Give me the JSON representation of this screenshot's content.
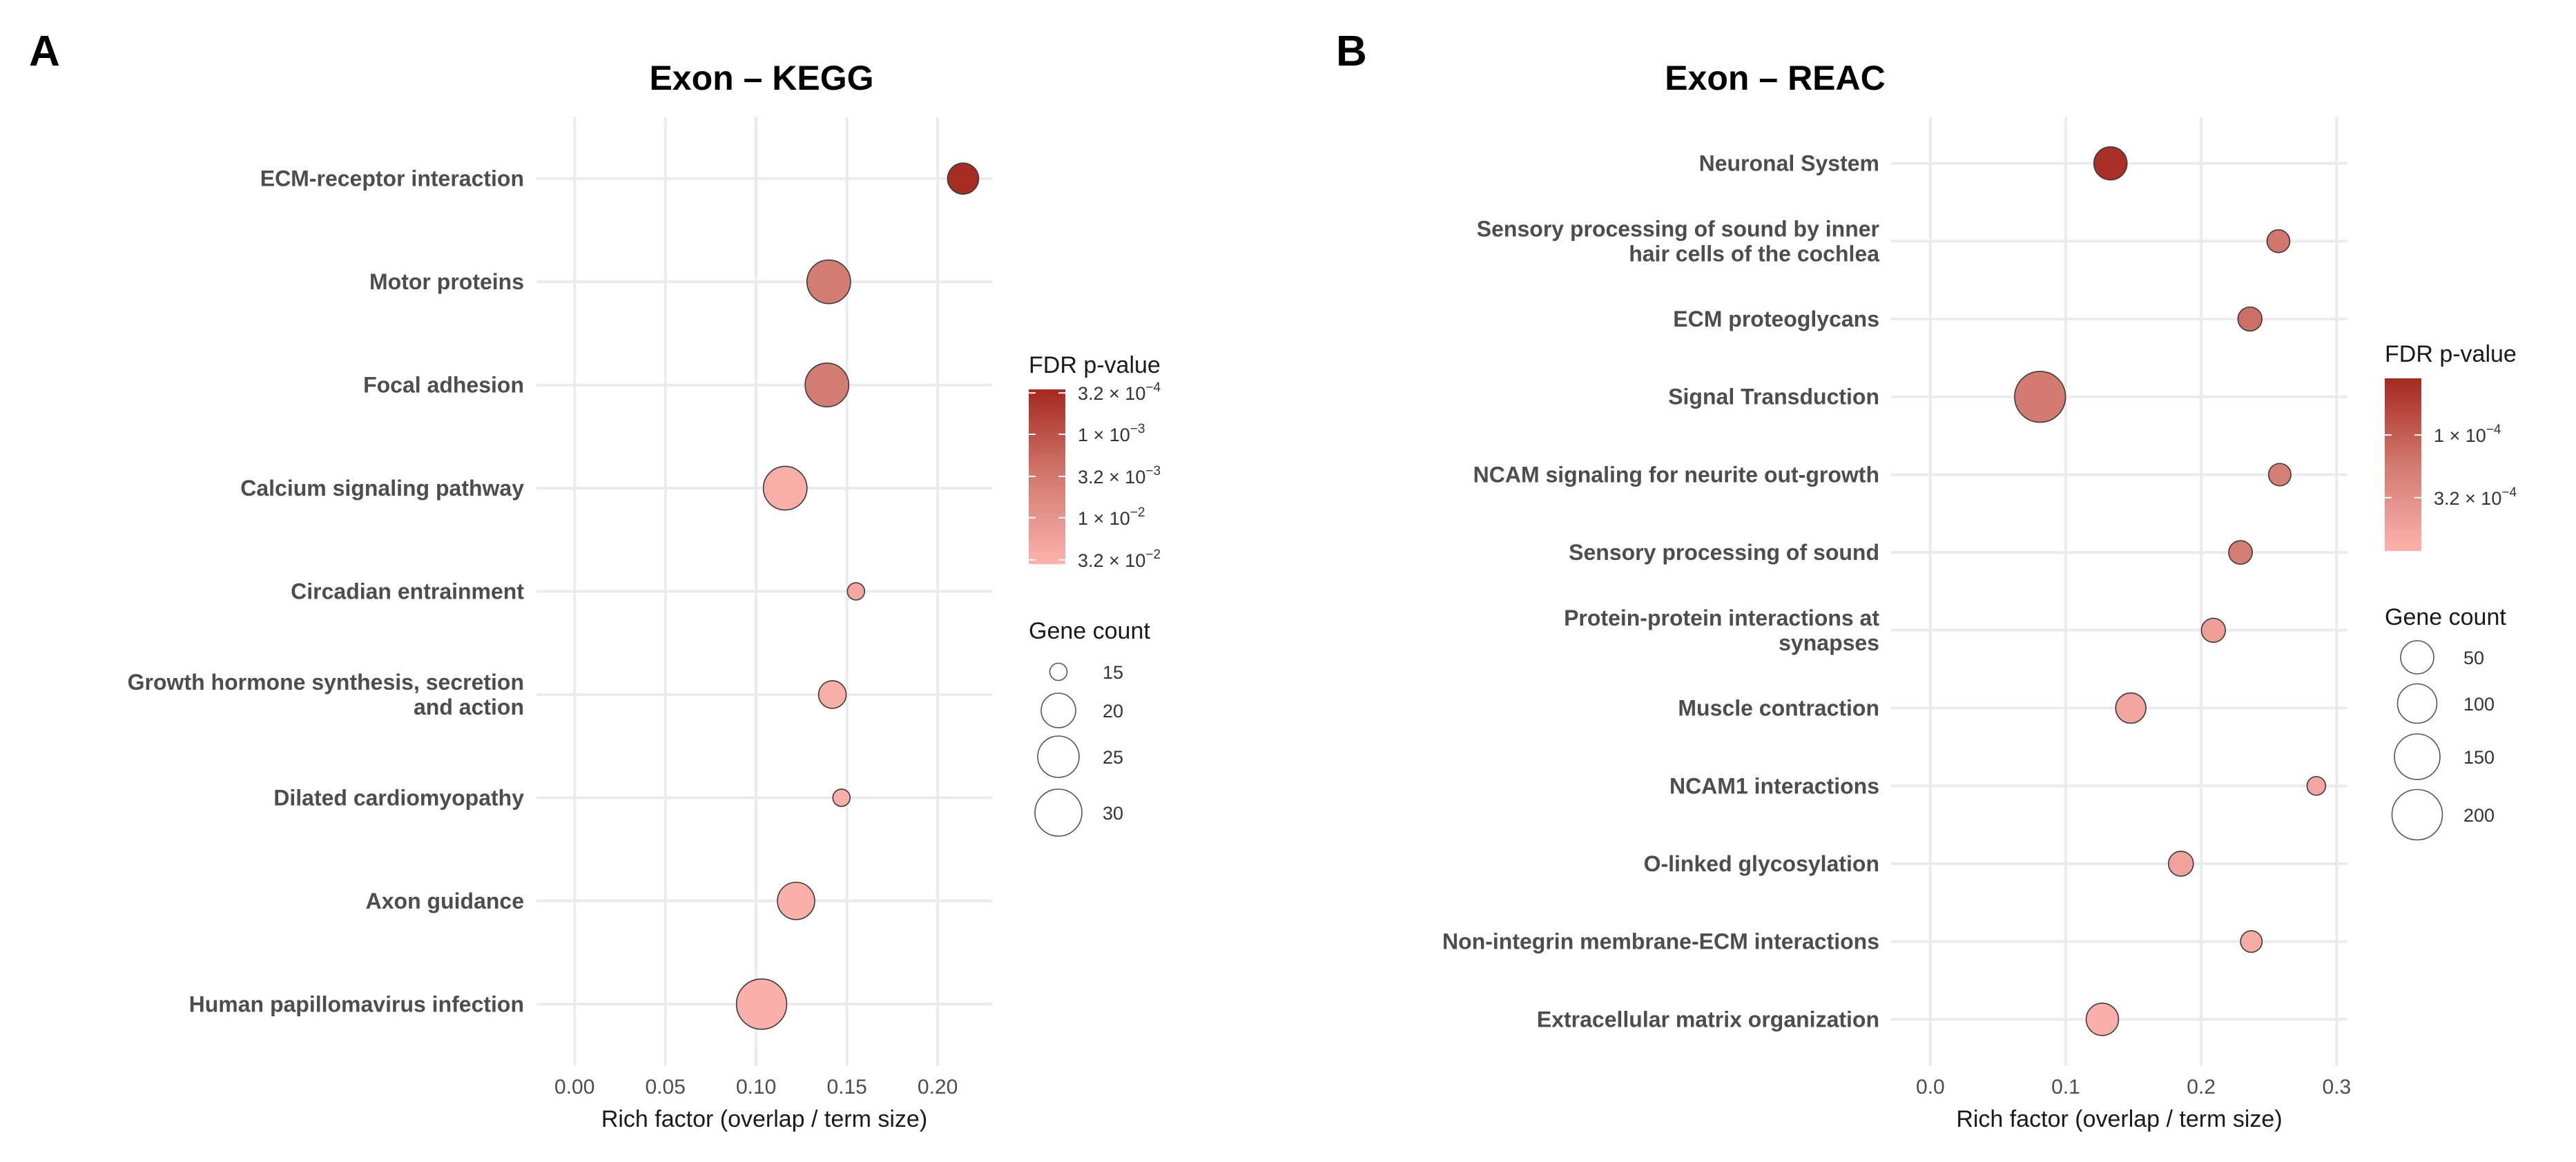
{
  "chart_data": [
    {
      "type": "scatter",
      "panel_label": "A",
      "title": "Exon – KEGG",
      "xlabel": "Rich factor (overlap / term size)",
      "ylabel": "",
      "xlim": [
        -0.021,
        0.23
      ],
      "x_ticks": [
        0,
        0.05,
        0.1,
        0.15,
        0.2
      ],
      "x_tick_labels": [
        "0.00",
        "0.05",
        "0.10",
        "0.15",
        "0.20"
      ],
      "grid": true,
      "terms": [
        {
          "lines": [
            "ECM-receptor interaction"
          ],
          "rich_factor": 0.214,
          "gene_count": 19,
          "fdr": 0.00032
        },
        {
          "lines": [
            "Motor proteins"
          ],
          "rich_factor": 0.14,
          "gene_count": 27,
          "fdr": 0.0035
        },
        {
          "lines": [
            "Focal adhesion"
          ],
          "rich_factor": 0.139,
          "gene_count": 27,
          "fdr": 0.0035
        },
        {
          "lines": [
            "Calcium signaling pathway"
          ],
          "rich_factor": 0.116,
          "gene_count": 27,
          "fdr": 0.03
        },
        {
          "lines": [
            "Circadian entrainment"
          ],
          "rich_factor": 0.155,
          "gene_count": 15,
          "fdr": 0.022
        },
        {
          "lines": [
            "Growth hormone synthesis, secretion",
            "and action"
          ],
          "rich_factor": 0.142,
          "gene_count": 18,
          "fdr": 0.03
        },
        {
          "lines": [
            "Dilated cardiomyopathy"
          ],
          "rich_factor": 0.147,
          "gene_count": 15,
          "fdr": 0.03
        },
        {
          "lines": [
            "Axon guidance"
          ],
          "rich_factor": 0.122,
          "gene_count": 22,
          "fdr": 0.032
        },
        {
          "lines": [
            "Human papillomavirus infection"
          ],
          "rich_factor": 0.103,
          "gene_count": 34,
          "fdr": 0.032
        }
      ],
      "color_legend": {
        "title": "FDR p-value",
        "range": [
          0.00029,
          0.036
        ],
        "low_color": "#a5291f",
        "mid_color": "#d27a70",
        "high_color": "#fdb2ad",
        "ticks": [
          {
            "value": 0.00032,
            "mantissa": "3.2 × 10",
            "exp": "−4"
          },
          {
            "value": 0.001,
            "mantissa": "1 × 10",
            "exp": "−3"
          },
          {
            "value": 0.0032,
            "mantissa": "3.2 × 10",
            "exp": "−3"
          },
          {
            "value": 0.01,
            "mantissa": "1 × 10",
            "exp": "−2"
          },
          {
            "value": 0.032,
            "mantissa": "3.2 × 10",
            "exp": "−2"
          }
        ]
      },
      "size_legend": {
        "title": "Gene count",
        "entries": [
          {
            "label": "15",
            "value": 15
          },
          {
            "label": "20",
            "value": 20
          },
          {
            "label": "25",
            "value": 25
          },
          {
            "label": "30",
            "value": 30
          }
        ]
      }
    },
    {
      "type": "scatter",
      "panel_label": "B",
      "title": "Exon – REAC",
      "xlabel": "Rich factor (overlap / term size)",
      "ylabel": "",
      "xlim": [
        -0.029,
        0.308
      ],
      "x_ticks": [
        0,
        0.1,
        0.2,
        0.3
      ],
      "x_tick_labels": [
        "0.0",
        "0.1",
        "0.2",
        "0.3"
      ],
      "grid": true,
      "terms": [
        {
          "lines": [
            "Neuronal System"
          ],
          "rich_factor": 0.133,
          "gene_count": 50,
          "fdr": 4e-05
        },
        {
          "lines": [
            "Sensory processing of sound by inner",
            "hair cells of the cochlea"
          ],
          "rich_factor": 0.257,
          "gene_count": 25,
          "fdr": 0.00016
        },
        {
          "lines": [
            "ECM proteoglycans"
          ],
          "rich_factor": 0.236,
          "gene_count": 28,
          "fdr": 0.00014
        },
        {
          "lines": [
            "Signal Transduction"
          ],
          "rich_factor": 0.081,
          "gene_count": 205,
          "fdr": 0.00018
        },
        {
          "lines": [
            "NCAM signaling for neurite out-growth"
          ],
          "rich_factor": 0.258,
          "gene_count": 24,
          "fdr": 0.0002
        },
        {
          "lines": [
            "Sensory processing of sound"
          ],
          "rich_factor": 0.229,
          "gene_count": 27,
          "fdr": 0.00019
        },
        {
          "lines": [
            "Protein-protein interactions at",
            "synapses"
          ],
          "rich_factor": 0.209,
          "gene_count": 28,
          "fdr": 0.0005
        },
        {
          "lines": [
            "Muscle contraction"
          ],
          "rich_factor": 0.148,
          "gene_count": 43,
          "fdr": 0.0006
        },
        {
          "lines": [
            "NCAM1 interactions"
          ],
          "rich_factor": 0.285,
          "gene_count": 15,
          "fdr": 0.0006
        },
        {
          "lines": [
            "O-linked glycosylation"
          ],
          "rich_factor": 0.185,
          "gene_count": 30,
          "fdr": 0.00055
        },
        {
          "lines": [
            "Non-integrin membrane-ECM interactions"
          ],
          "rich_factor": 0.237,
          "gene_count": 22,
          "fdr": 0.0007
        },
        {
          "lines": [
            "Extracellular matrix organization"
          ],
          "rich_factor": 0.127,
          "gene_count": 48,
          "fdr": 0.0008
        }
      ],
      "color_legend": {
        "title": "FDR p-value",
        "range": [
          3.5e-05,
          0.00086
        ],
        "low_color": "#a5291f",
        "mid_color": "#d27a70",
        "high_color": "#fdb2ad",
        "ticks": [
          {
            "value": 0.0001,
            "mantissa": "1 × 10",
            "exp": "−4"
          },
          {
            "value": 0.00032,
            "mantissa": "3.2 × 10",
            "exp": "−4"
          }
        ]
      },
      "size_legend": {
        "title": "Gene count",
        "entries": [
          {
            "label": "50",
            "value": 50
          },
          {
            "label": "100",
            "value": 100
          },
          {
            "label": "150",
            "value": 150
          },
          {
            "label": "200",
            "value": 200
          }
        ]
      }
    }
  ]
}
